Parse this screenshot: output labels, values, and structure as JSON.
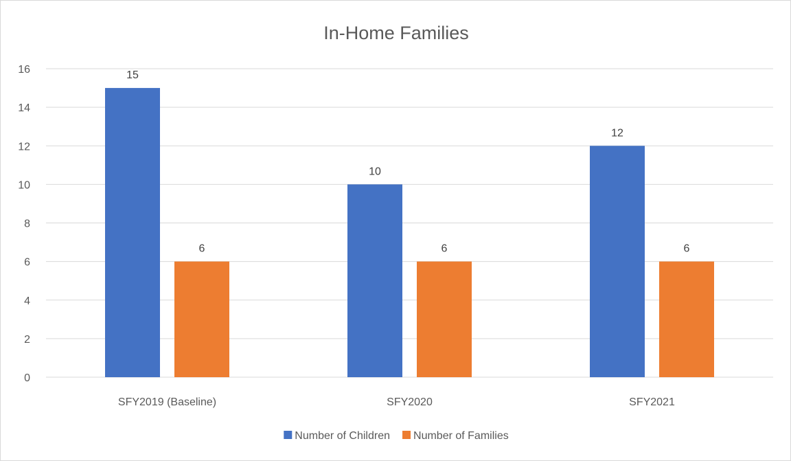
{
  "chart_data": {
    "type": "bar",
    "title": "In-Home Families",
    "xlabel": "",
    "ylabel": "",
    "categories": [
      "SFY2019 (Baseline)",
      "SFY2020",
      "SFY2021"
    ],
    "series": [
      {
        "name": "Number of Children",
        "values": [
          15,
          10,
          12
        ],
        "color": "#4472C4"
      },
      {
        "name": "Number of Families",
        "values": [
          6,
          6,
          6
        ],
        "color": "#ED7D31"
      }
    ],
    "ylim": [
      0,
      16
    ],
    "yticks": [
      0,
      2,
      4,
      6,
      8,
      10,
      12,
      14,
      16
    ],
    "grid": true,
    "legend": "bottom",
    "data_labels": true
  }
}
